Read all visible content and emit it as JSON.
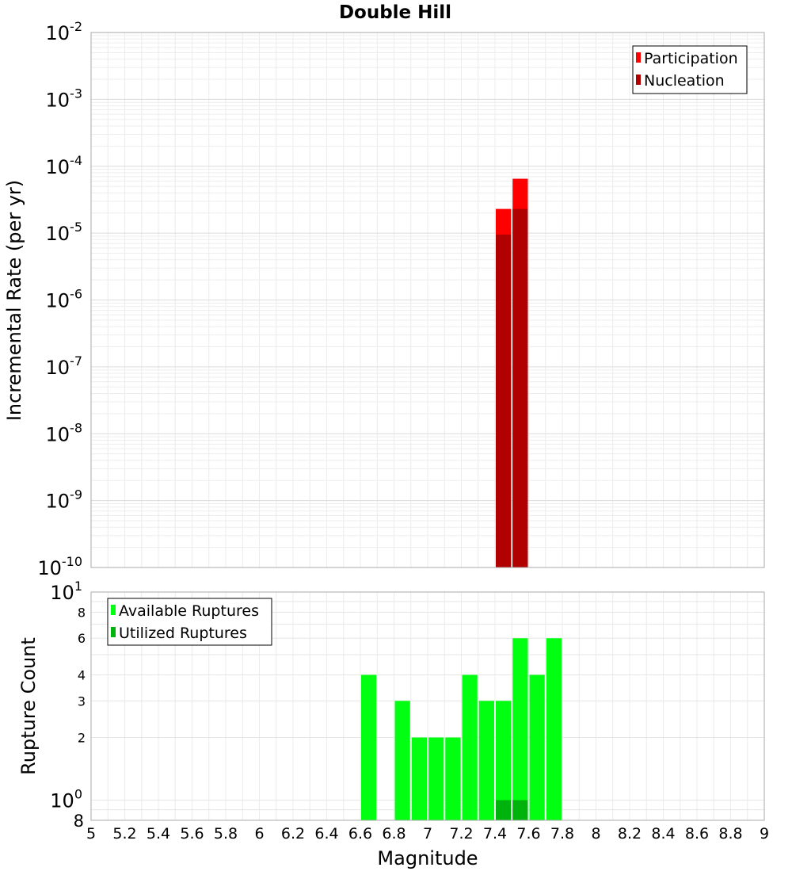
{
  "chart_data": [
    {
      "type": "bar",
      "title": "Double Hill",
      "xlabel": "",
      "ylabel": "Incremental Rate (per yr)",
      "yscale": "log",
      "ylim": [
        1e-10,
        0.01
      ],
      "xlim": [
        5,
        9
      ],
      "bin_width": 0.1,
      "legend_position": "top-right",
      "y_ticks": [
        {
          "base": "10",
          "exp": "-2"
        },
        {
          "base": "10",
          "exp": "-3"
        },
        {
          "base": "10",
          "exp": "-4"
        },
        {
          "base": "10",
          "exp": "-5"
        },
        {
          "base": "10",
          "exp": "-6"
        },
        {
          "base": "10",
          "exp": "-7"
        },
        {
          "base": "10",
          "exp": "-8"
        },
        {
          "base": "10",
          "exp": "-9"
        },
        {
          "base": "10",
          "exp": "-10"
        }
      ],
      "series": [
        {
          "name": "Participation",
          "color": "#ff0000",
          "x": [
            7.45,
            7.55
          ],
          "values": [
            2.3e-05,
            6.5e-05
          ]
        },
        {
          "name": "Nucleation",
          "color": "#b00000",
          "x": [
            7.45,
            7.55
          ],
          "values": [
            9.5e-06,
            2.3e-05
          ]
        }
      ]
    },
    {
      "type": "bar",
      "xlabel": "Magnitude",
      "ylabel": "Rupture Count",
      "yscale": "log",
      "ylim": [
        0.8,
        10
      ],
      "xlim": [
        5,
        9
      ],
      "bin_width": 0.1,
      "legend_position": "top-left",
      "x_ticks": [
        "5",
        "5.2",
        "5.4",
        "5.6",
        "5.8",
        "6",
        "6.2",
        "6.4",
        "6.6",
        "6.8",
        "7",
        "7.2",
        "7.4",
        "7.6",
        "7.8",
        "8",
        "8.2",
        "8.4",
        "8.6",
        "8.8",
        "9"
      ],
      "y_ticks_major": [
        {
          "base": "10",
          "exp": "1",
          "value": 10
        },
        {
          "base": "10",
          "exp": "0",
          "value": 1
        }
      ],
      "y_ticks_minor": [
        "8",
        "6",
        "4",
        "3",
        "2"
      ],
      "y_bottom_label": "8",
      "series": [
        {
          "name": "Available Ruptures",
          "color": "#00ff11",
          "x": [
            6.65,
            6.85,
            6.95,
            7.05,
            7.15,
            7.25,
            7.35,
            7.45,
            7.55,
            7.65,
            7.75
          ],
          "values": [
            4,
            3,
            2,
            2,
            2,
            4,
            3,
            3,
            6,
            4,
            6
          ]
        },
        {
          "name": "Utilized Ruptures",
          "color": "#00b30c",
          "x": [
            7.45,
            7.55
          ],
          "values": [
            1,
            1
          ]
        }
      ]
    }
  ]
}
